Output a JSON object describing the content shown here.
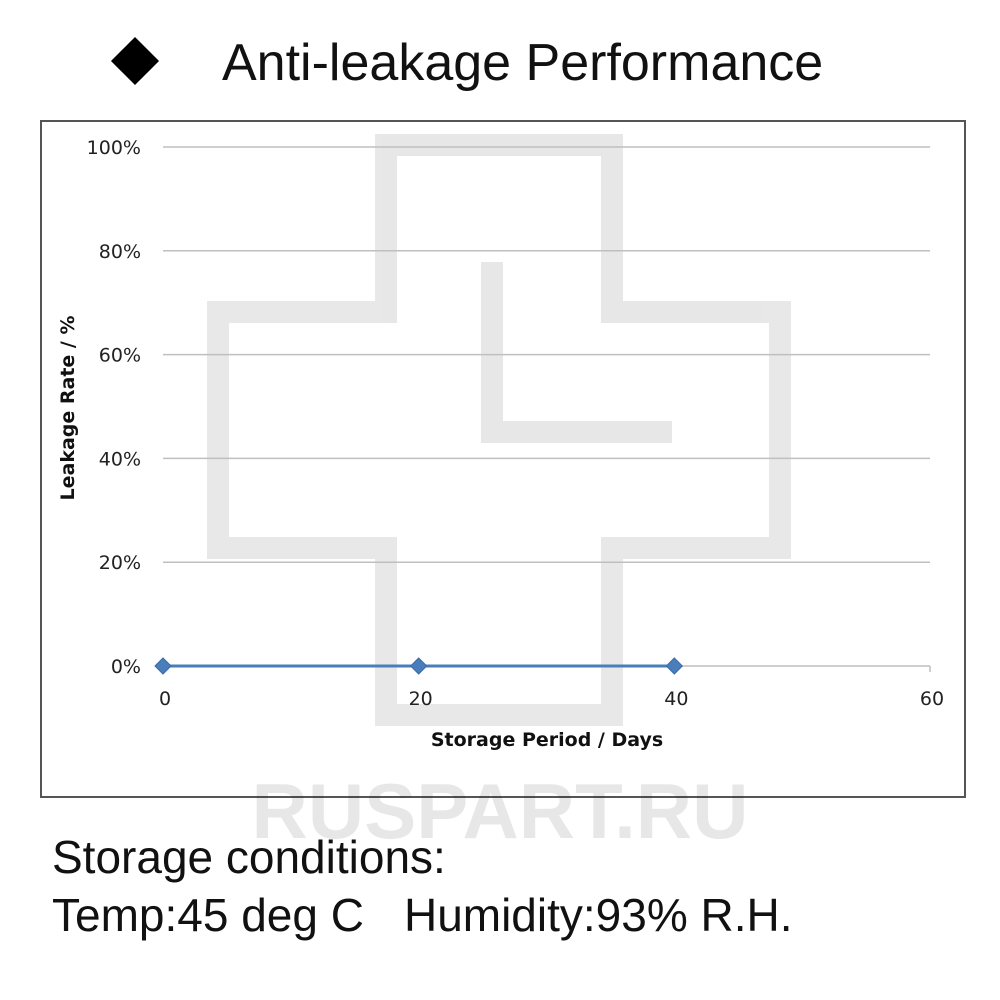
{
  "title": "Anti-leakage Performance",
  "watermark": "RUSPART.RU",
  "conditions": {
    "heading": "Storage conditions:",
    "temp": "Temp:45 deg C",
    "humidity": "Humidity:93% R.H."
  },
  "colors": {
    "series": "#4a7ebb",
    "grid": "#bfbfbf",
    "frame": "#555555"
  },
  "chart_data": {
    "type": "line",
    "title": "",
    "xlabel": "Storage Period / Days",
    "ylabel": "Leakage Rate / %",
    "xlim": [
      0,
      60
    ],
    "ylim": [
      0,
      100
    ],
    "x_ticks": [
      0,
      20,
      40,
      60
    ],
    "y_ticks": [
      0,
      20,
      40,
      60,
      80,
      100
    ],
    "y_tick_labels": [
      "0%",
      "20%",
      "40%",
      "60%",
      "80%",
      "100%"
    ],
    "grid": true,
    "legend": "none",
    "marker": "diamond",
    "series": [
      {
        "x": [
          0,
          20,
          40
        ],
        "y": [
          0,
          0,
          0
        ]
      }
    ]
  }
}
